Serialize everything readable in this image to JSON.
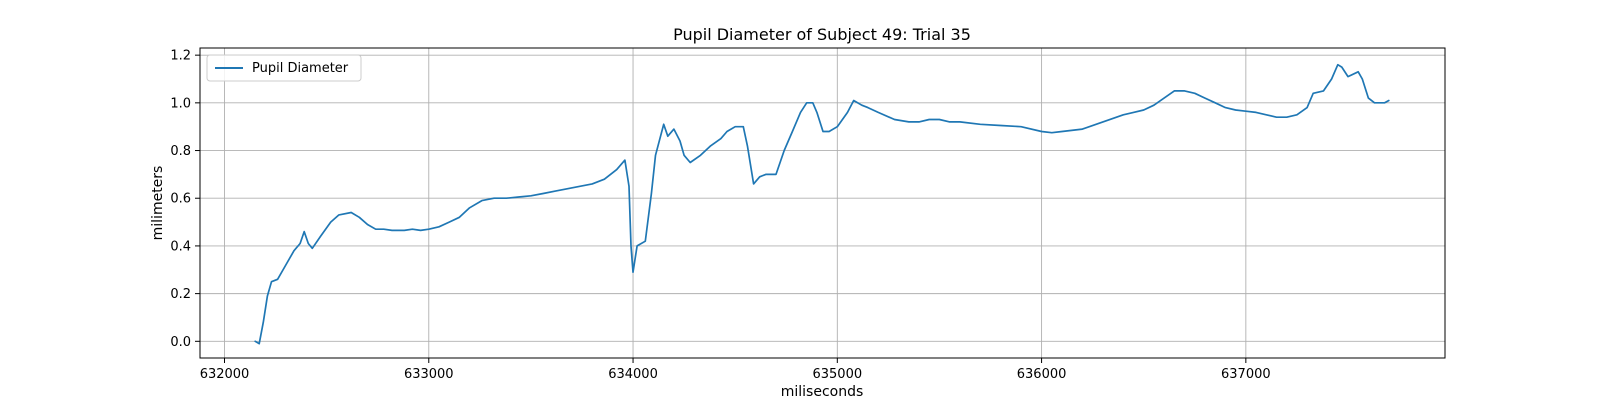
{
  "chart_data": {
    "type": "line",
    "title": "Pupil Diameter of Subject 49: Trial 35",
    "xlabel": "miliseconds",
    "ylabel": "milimeters",
    "xlim": [
      631880,
      637975
    ],
    "ylim": [
      -0.07,
      1.23
    ],
    "xticks": [
      632000,
      633000,
      634000,
      635000,
      636000,
      637000
    ],
    "yticks": [
      0.0,
      0.2,
      0.4,
      0.6,
      0.8,
      1.0,
      1.2
    ],
    "xtick_labels": [
      "632000",
      "633000",
      "634000",
      "635000",
      "636000",
      "637000"
    ],
    "ytick_labels": [
      "0.0",
      "0.2",
      "0.4",
      "0.6",
      "0.8",
      "1.0",
      "1.2"
    ],
    "grid": true,
    "legend_position": "top-left",
    "colors": {
      "line": "#1f77b4",
      "grid": "#b0b0b0",
      "axes": "#000000"
    },
    "series": [
      {
        "name": "Pupil Diameter",
        "x": [
          632150,
          632170,
          632190,
          632210,
          632230,
          632260,
          632300,
          632340,
          632370,
          632390,
          632410,
          632430,
          632470,
          632520,
          632560,
          632620,
          632660,
          632700,
          632740,
          632780,
          632820,
          632880,
          632920,
          632960,
          633000,
          633050,
          633100,
          633150,
          633200,
          633260,
          633320,
          633380,
          633440,
          633500,
          633560,
          633620,
          633680,
          633740,
          633800,
          633860,
          633920,
          633960,
          633980,
          633990,
          634000,
          634020,
          634060,
          634090,
          634110,
          634150,
          634170,
          634200,
          634230,
          634250,
          634280,
          634330,
          634380,
          634430,
          634460,
          634500,
          634540,
          634560,
          634590,
          634620,
          634650,
          634700,
          634740,
          634780,
          634820,
          634850,
          634880,
          634900,
          634930,
          634960,
          635000,
          635050,
          635080,
          635120,
          635150,
          635200,
          635280,
          635350,
          635400,
          635450,
          635500,
          635550,
          635600,
          635700,
          635800,
          635900,
          636000,
          636050,
          636100,
          636200,
          636300,
          636400,
          636450,
          636500,
          636550,
          636600,
          636650,
          636700,
          636750,
          636800,
          636850,
          636900,
          636950,
          637000,
          637050,
          637100,
          637150,
          637200,
          637250,
          637300,
          637330,
          637380,
          637420,
          637450,
          637470,
          637500,
          637550,
          637570,
          637600,
          637630,
          637650,
          637680,
          637700
        ],
        "y": [
          0.0,
          -0.01,
          0.08,
          0.19,
          0.25,
          0.26,
          0.32,
          0.38,
          0.41,
          0.46,
          0.41,
          0.39,
          0.44,
          0.5,
          0.53,
          0.54,
          0.52,
          0.49,
          0.47,
          0.47,
          0.465,
          0.465,
          0.47,
          0.465,
          0.47,
          0.48,
          0.5,
          0.52,
          0.56,
          0.59,
          0.6,
          0.6,
          0.605,
          0.61,
          0.62,
          0.63,
          0.64,
          0.65,
          0.66,
          0.68,
          0.72,
          0.76,
          0.65,
          0.4,
          0.29,
          0.4,
          0.42,
          0.62,
          0.78,
          0.91,
          0.86,
          0.89,
          0.84,
          0.78,
          0.75,
          0.78,
          0.82,
          0.85,
          0.88,
          0.9,
          0.9,
          0.82,
          0.66,
          0.69,
          0.7,
          0.7,
          0.8,
          0.88,
          0.96,
          1.0,
          1.0,
          0.96,
          0.88,
          0.88,
          0.9,
          0.96,
          1.01,
          0.99,
          0.98,
          0.96,
          0.93,
          0.92,
          0.92,
          0.93,
          0.93,
          0.92,
          0.92,
          0.91,
          0.905,
          0.9,
          0.88,
          0.875,
          0.88,
          0.89,
          0.92,
          0.95,
          0.96,
          0.97,
          0.99,
          1.02,
          1.05,
          1.05,
          1.04,
          1.02,
          1.0,
          0.98,
          0.97,
          0.965,
          0.96,
          0.95,
          0.94,
          0.94,
          0.95,
          0.98,
          1.04,
          1.05,
          1.1,
          1.16,
          1.15,
          1.11,
          1.13,
          1.1,
          1.02,
          1.0,
          1.0,
          1.0,
          1.01
        ]
      }
    ]
  }
}
